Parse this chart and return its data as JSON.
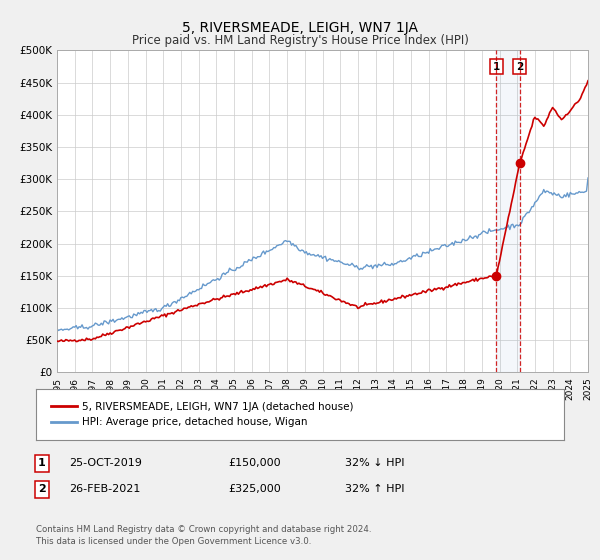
{
  "title": "5, RIVERSMEADE, LEIGH, WN7 1JA",
  "subtitle": "Price paid vs. HM Land Registry's House Price Index (HPI)",
  "legend_label_red": "5, RIVERSMEADE, LEIGH, WN7 1JA (detached house)",
  "legend_label_blue": "HPI: Average price, detached house, Wigan",
  "sale1_label": "1",
  "sale1_date": "25-OCT-2019",
  "sale1_price": "£150,000",
  "sale1_hpi": "32% ↓ HPI",
  "sale2_label": "2",
  "sale2_date": "26-FEB-2021",
  "sale2_price": "£325,000",
  "sale2_hpi": "32% ↑ HPI",
  "footer": "Contains HM Land Registry data © Crown copyright and database right 2024.\nThis data is licensed under the Open Government Licence v3.0.",
  "red_color": "#cc0000",
  "blue_color": "#6699cc",
  "vline1_x": 2019.82,
  "vline2_x": 2021.15,
  "sale1_dot_x": 2019.82,
  "sale1_dot_y": 150000,
  "sale2_dot_x": 2021.15,
  "sale2_dot_y": 325000,
  "ylim": [
    0,
    500000
  ],
  "xlim": [
    1995,
    2025
  ],
  "background_color": "#f0f0f0",
  "plot_bg": "#ffffff",
  "grid_color": "#cccccc"
}
